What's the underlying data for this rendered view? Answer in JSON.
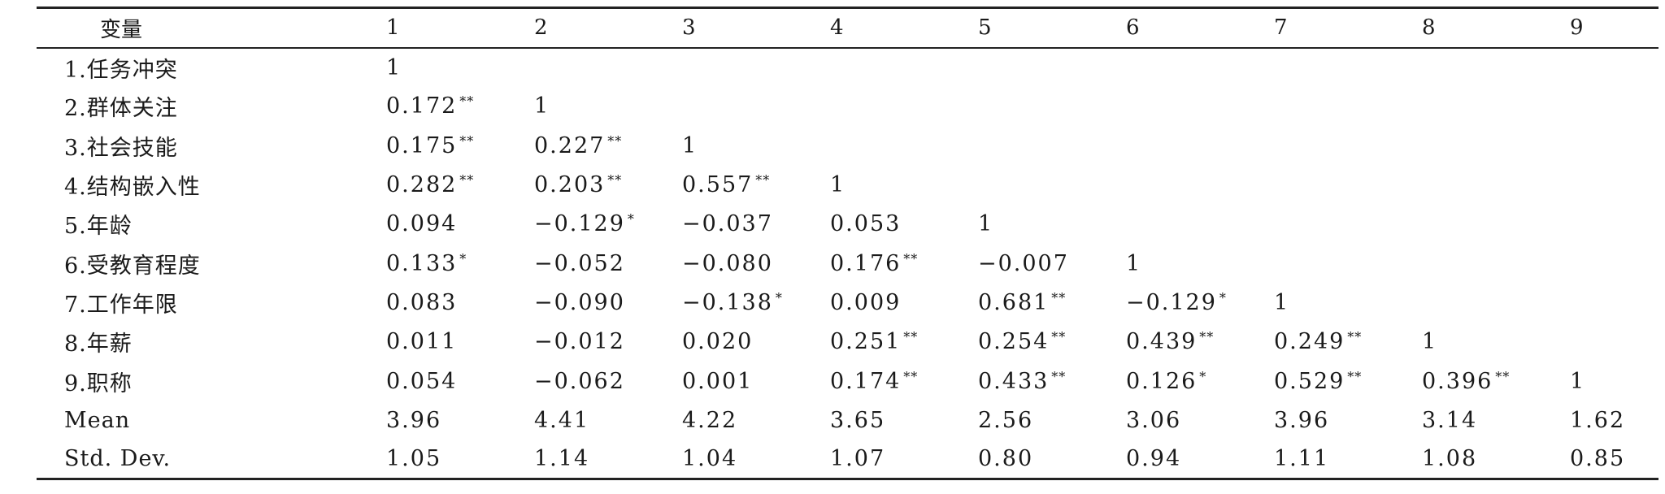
{
  "table": {
    "header": [
      "变量",
      "1",
      "2",
      "3",
      "4",
      "5",
      "6",
      "7",
      "8",
      "9"
    ],
    "rows": [
      {
        "label": "1.任务冲突",
        "cells": [
          [
            "1",
            ""
          ],
          [
            "",
            ""
          ],
          [
            "",
            ""
          ],
          [
            "",
            ""
          ],
          [
            "",
            ""
          ],
          [
            "",
            ""
          ],
          [
            "",
            ""
          ],
          [
            "",
            ""
          ],
          [
            "",
            ""
          ]
        ]
      },
      {
        "label": "2.群体关注",
        "cells": [
          [
            "0.172",
            "**"
          ],
          [
            "1",
            ""
          ],
          [
            "",
            ""
          ],
          [
            "",
            ""
          ],
          [
            "",
            ""
          ],
          [
            "",
            ""
          ],
          [
            "",
            ""
          ],
          [
            "",
            ""
          ],
          [
            "",
            ""
          ]
        ]
      },
      {
        "label": "3.社会技能",
        "cells": [
          [
            "0.175",
            "**"
          ],
          [
            "0.227",
            "**"
          ],
          [
            "1",
            ""
          ],
          [
            "",
            ""
          ],
          [
            "",
            ""
          ],
          [
            "",
            ""
          ],
          [
            "",
            ""
          ],
          [
            "",
            ""
          ],
          [
            "",
            ""
          ]
        ]
      },
      {
        "label": "4.结构嵌入性",
        "cells": [
          [
            "0.282",
            "**"
          ],
          [
            "0.203",
            "**"
          ],
          [
            "0.557",
            "**"
          ],
          [
            "1",
            ""
          ],
          [
            "",
            ""
          ],
          [
            "",
            ""
          ],
          [
            "",
            ""
          ],
          [
            "",
            ""
          ],
          [
            "",
            ""
          ]
        ]
      },
      {
        "label": "5.年龄",
        "cells": [
          [
            "0.094",
            ""
          ],
          [
            "−0.129",
            "*"
          ],
          [
            "−0.037",
            ""
          ],
          [
            "0.053",
            ""
          ],
          [
            "1",
            ""
          ],
          [
            "",
            ""
          ],
          [
            "",
            ""
          ],
          [
            "",
            ""
          ],
          [
            "",
            ""
          ]
        ]
      },
      {
        "label": "6.受教育程度",
        "cells": [
          [
            "0.133",
            "*"
          ],
          [
            "−0.052",
            ""
          ],
          [
            "−0.080",
            ""
          ],
          [
            "0.176",
            "**"
          ],
          [
            "−0.007",
            ""
          ],
          [
            "1",
            ""
          ],
          [
            "",
            ""
          ],
          [
            "",
            ""
          ],
          [
            "",
            ""
          ]
        ]
      },
      {
        "label": "7.工作年限",
        "cells": [
          [
            "0.083",
            ""
          ],
          [
            "−0.090",
            ""
          ],
          [
            "−0.138",
            "*"
          ],
          [
            "0.009",
            ""
          ],
          [
            "0.681",
            "**"
          ],
          [
            "−0.129",
            "*"
          ],
          [
            "1",
            ""
          ],
          [
            "",
            ""
          ],
          [
            "",
            ""
          ]
        ]
      },
      {
        "label": "8.年薪",
        "cells": [
          [
            "0.011",
            ""
          ],
          [
            "−0.012",
            ""
          ],
          [
            "0.020",
            ""
          ],
          [
            "0.251",
            "**"
          ],
          [
            "0.254",
            "**"
          ],
          [
            "0.439",
            "**"
          ],
          [
            "0.249",
            "**"
          ],
          [
            "1",
            ""
          ],
          [
            "",
            ""
          ]
        ]
      },
      {
        "label": "9.职称",
        "cells": [
          [
            "0.054",
            ""
          ],
          [
            "−0.062",
            ""
          ],
          [
            "0.001",
            ""
          ],
          [
            "0.174",
            "**"
          ],
          [
            "0.433",
            "**"
          ],
          [
            "0.126",
            "*"
          ],
          [
            "0.529",
            "**"
          ],
          [
            "0.396",
            "**"
          ],
          [
            "1",
            ""
          ]
        ]
      },
      {
        "label": "Mean",
        "cells": [
          [
            "3.96",
            ""
          ],
          [
            "4.41",
            ""
          ],
          [
            "4.22",
            ""
          ],
          [
            "3.65",
            ""
          ],
          [
            "2.56",
            ""
          ],
          [
            "3.06",
            ""
          ],
          [
            "3.96",
            ""
          ],
          [
            "3.14",
            ""
          ],
          [
            "1.62",
            ""
          ]
        ]
      },
      {
        "label": "Std. Dev.",
        "cells": [
          [
            "1.05",
            ""
          ],
          [
            "1.14",
            ""
          ],
          [
            "1.04",
            ""
          ],
          [
            "1.07",
            ""
          ],
          [
            "0.80",
            ""
          ],
          [
            "0.94",
            ""
          ],
          [
            "1.11",
            ""
          ],
          [
            "1.08",
            ""
          ],
          [
            "0.85",
            ""
          ]
        ]
      }
    ]
  }
}
